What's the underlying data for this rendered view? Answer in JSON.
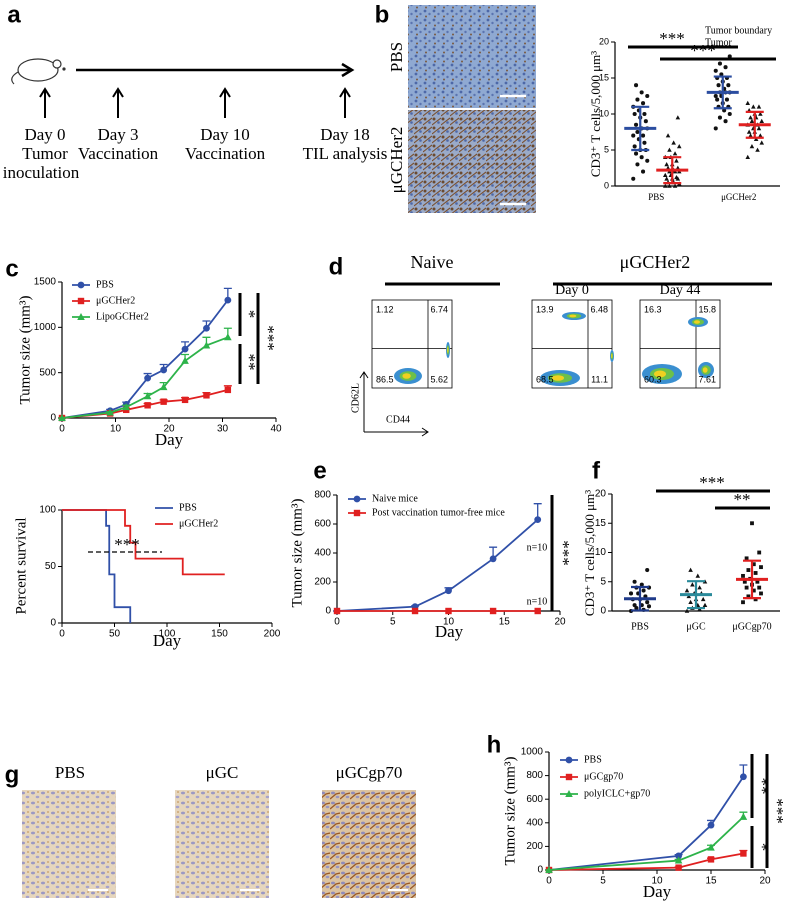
{
  "panel_labels": [
    "a",
    "b",
    "c",
    "d",
    "e",
    "f",
    "g",
    "h"
  ],
  "timeline": {
    "events": [
      {
        "lines": [
          "Day 0",
          "Tumor",
          "inoculation"
        ]
      },
      {
        "lines": [
          "Day 3",
          "Vaccination"
        ]
      },
      {
        "lines": [
          "Day 10",
          "Vaccination"
        ]
      },
      {
        "lines": [
          "Day 18",
          "TIL analysis"
        ]
      }
    ]
  },
  "images": {
    "b": [
      "PBS",
      "μGCHer2"
    ],
    "g": [
      "PBS",
      "μGC",
      "μGCgp70"
    ]
  },
  "flow": {
    "headers": [
      "Naive",
      "μGCHer2"
    ],
    "y_label": "CD62L",
    "x_label": "CD44",
    "plots": [
      {
        "quadrants": [
          1.12,
          6.74,
          86.5,
          5.62
        ]
      },
      {
        "title": "Day 0",
        "quadrants": [
          13.9,
          6.48,
          68.5,
          11.1
        ]
      },
      {
        "title": "Day 44",
        "quadrants": [
          16.3,
          15.8,
          60.3,
          7.61
        ]
      }
    ]
  },
  "chart_data": [
    {
      "type": "dotplot",
      "y_label": "CD3⁺ T cells/5,000 μm³",
      "categories": [
        "PBS",
        "μGCHer2"
      ],
      "ylim": [
        0,
        20
      ],
      "yticks": [
        0,
        5,
        10,
        15,
        20
      ],
      "point_color": "#111",
      "series": [
        {
          "name": "Tumor boundary",
          "color": "#2b4da0",
          "marker": "circle",
          "points": [
            [
              1,
              2,
              3,
              3.5,
              4,
              4.5,
              5,
              5,
              5.5,
              6,
              6.5,
              7,
              7,
              7.5,
              8,
              8,
              8.5,
              9,
              9.5,
              10,
              10,
              10.5,
              11,
              11.5,
              12,
              12.5,
              13,
              14
            ],
            [
              8,
              9,
              9.5,
              10,
              10.5,
              11,
              11,
              11.5,
              12,
              12,
              12.5,
              12.5,
              13,
              13,
              13,
              13.5,
              14,
              14,
              14.5,
              15,
              15,
              15.5,
              16,
              16.5,
              17,
              18
            ]
          ],
          "means": [
            8,
            13
          ],
          "sds": [
            3,
            2.2
          ]
        },
        {
          "name": "Tumor",
          "color": "#e02020",
          "marker": "triangle",
          "points": [
            [
              0,
              0,
              0,
              0.3,
              0.5,
              0.5,
              1,
              1,
              1,
              1.2,
              1.5,
              1.5,
              2,
              2,
              2,
              2.2,
              2.5,
              2.5,
              3,
              3,
              3.5,
              4,
              4,
              4.5,
              5,
              5.5,
              6,
              7,
              9.5
            ],
            [
              4,
              5,
              5.5,
              6,
              6.5,
              7,
              7,
              7.5,
              7.5,
              8,
              8,
              8.5,
              8.5,
              9,
              9,
              9.5,
              9.5,
              10,
              10,
              10.5,
              11,
              11,
              11.5
            ]
          ],
          "means": [
            2.2,
            8.5
          ],
          "sds": [
            1.8,
            1.8
          ]
        }
      ],
      "significance": [
        "***",
        "***"
      ]
    },
    {
      "type": "line",
      "y_label": "Tumor size (mm³)",
      "x_label": "Day",
      "x": [
        0,
        9,
        12,
        16,
        19,
        23,
        27,
        31
      ],
      "xlim": [
        0,
        40
      ],
      "xticks": [
        0,
        10,
        20,
        30,
        40
      ],
      "ylim": [
        0,
        1500
      ],
      "yticks": [
        0,
        500,
        1000,
        1500
      ],
      "series": [
        {
          "name": "PBS",
          "color": "#3050a8",
          "marker": "circle",
          "values": [
            0,
            80,
            150,
            440,
            530,
            760,
            990,
            1300
          ],
          "errors": [
            0,
            15,
            25,
            50,
            60,
            80,
            80,
            130
          ]
        },
        {
          "name": "μGCHer2",
          "color": "#e02020",
          "marker": "square",
          "values": [
            0,
            50,
            90,
            140,
            180,
            200,
            250,
            310
          ],
          "errors": [
            0,
            10,
            15,
            20,
            20,
            25,
            30,
            45
          ]
        },
        {
          "name": "LipoGCHer2",
          "color": "#2db34a",
          "marker": "triangle",
          "values": [
            0,
            60,
            120,
            240,
            340,
            630,
            800,
            890
          ],
          "errors": [
            0,
            10,
            20,
            30,
            50,
            70,
            90,
            100
          ]
        }
      ],
      "significance": [
        "*",
        "**",
        "***"
      ]
    },
    {
      "type": "step",
      "y_label": "Percent survival",
      "x_label": "Day",
      "xlim": [
        0,
        200
      ],
      "xticks": [
        0,
        50,
        100,
        150,
        200
      ],
      "ylim": [
        0,
        100
      ],
      "yticks": [
        0,
        50,
        100
      ],
      "series": [
        {
          "name": "PBS",
          "color": "#3050a8",
          "x": [
            0,
            42,
            45,
            50,
            65
          ],
          "values": [
            100,
            86,
            43,
            14,
            0
          ]
        },
        {
          "name": "μGCHer2",
          "color": "#e02020",
          "x": [
            0,
            60,
            65,
            70,
            115,
            155
          ],
          "values": [
            100,
            86,
            71,
            57,
            43,
            43
          ]
        }
      ],
      "significance": [
        "***"
      ]
    },
    {
      "type": "line",
      "y_label": "Tumor size (mm³)",
      "x_label": "Day",
      "x": [
        0,
        7,
        10,
        14,
        18
      ],
      "xlim": [
        0,
        20
      ],
      "xticks": [
        0,
        5,
        10,
        15,
        20
      ],
      "ylim": [
        0,
        800
      ],
      "yticks": [
        0,
        200,
        400,
        600,
        800
      ],
      "series": [
        {
          "name": "Naive mice",
          "color": "#3050a8",
          "marker": "circle",
          "values": [
            0,
            30,
            140,
            360,
            630
          ],
          "errors": [
            0,
            5,
            20,
            80,
            110
          ]
        },
        {
          "name": "Post vaccination tumor-free mice",
          "color": "#e02020",
          "marker": "square",
          "values": [
            0,
            0,
            0,
            0,
            0
          ]
        }
      ],
      "annotations": [
        {
          "text": "n=10",
          "color": "#3050a8"
        },
        {
          "text": "n=10",
          "color": "#e02020"
        }
      ],
      "significance": [
        "***"
      ]
    },
    {
      "type": "dotplot",
      "y_label": "CD3⁺ T cells/5,000 μm³",
      "categories": [
        "PBS",
        "μGC",
        "μGCgp70"
      ],
      "ylim": [
        0,
        20
      ],
      "yticks": [
        0,
        5,
        10,
        15,
        20
      ],
      "point_color": "#111",
      "series": [
        {
          "color": [
            "#1f3a8a",
            "#2a8a9a",
            "#e02020"
          ],
          "marker": [
            "circle",
            "triangle",
            "square"
          ],
          "points": [
            [
              0,
              0.2,
              0.5,
              0.8,
              1,
              1,
              1.5,
              2,
              2,
              2.5,
              3,
              3,
              3.5,
              4,
              4,
              4.5,
              5,
              7
            ],
            [
              0,
              0.3,
              0.5,
              1,
              1,
              1.5,
              2,
              2,
              2.5,
              3,
              3,
              3.5,
              4,
              4.5,
              5,
              6,
              7
            ],
            [
              1.5,
              2,
              2.5,
              3,
              3.5,
              4,
              4,
              4.5,
              5,
              5,
              5.5,
              6,
              6.5,
              7,
              7.5,
              8,
              9,
              10,
              15
            ]
          ],
          "means": [
            2.1,
            2.8,
            5.4
          ],
          "sds": [
            2,
            2.3,
            3.2
          ]
        }
      ],
      "significance": [
        "***",
        "**"
      ]
    },
    {
      "type": "line",
      "y_label": "Tumor size (mm³)",
      "x_label": "Day",
      "x": [
        0,
        12,
        15,
        18
      ],
      "xlim": [
        0,
        20
      ],
      "xticks": [
        0,
        5,
        10,
        15,
        20
      ],
      "ylim": [
        0,
        1000
      ],
      "yticks": [
        0,
        200,
        400,
        600,
        800,
        1000
      ],
      "series": [
        {
          "name": "PBS",
          "color": "#3050a8",
          "marker": "circle",
          "values": [
            0,
            120,
            380,
            790
          ],
          "errors": [
            0,
            10,
            40,
            100
          ]
        },
        {
          "name": "μGCgp70",
          "color": "#e02020",
          "marker": "square",
          "values": [
            0,
            20,
            90,
            140
          ],
          "errors": [
            0,
            5,
            10,
            25
          ]
        },
        {
          "name": "polyICLC+gp70",
          "color": "#2db34a",
          "marker": "triangle",
          "values": [
            0,
            80,
            190,
            450
          ],
          "errors": [
            0,
            10,
            20,
            40
          ]
        }
      ],
      "significance": [
        "**",
        "*",
        "***"
      ]
    }
  ]
}
